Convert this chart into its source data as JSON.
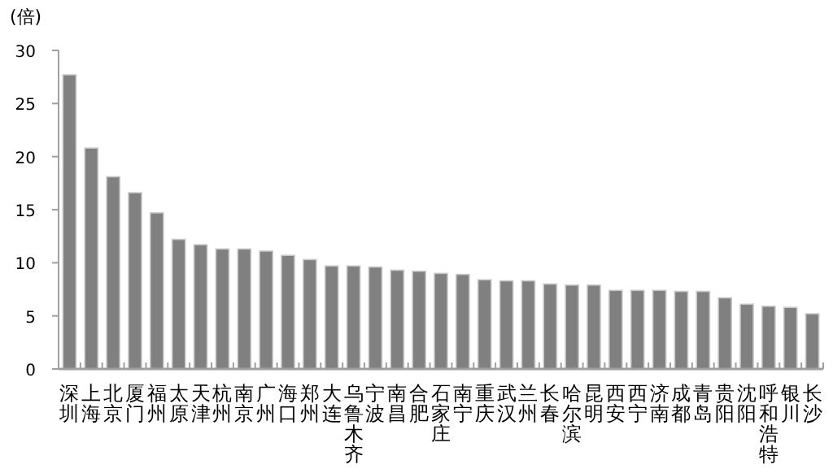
{
  "chart_data": {
    "type": "bar",
    "ylabel": "(倍)",
    "categories": [
      "深圳",
      "上海",
      "北京",
      "厦门",
      "福州",
      "太原",
      "天津",
      "杭州",
      "南京",
      "广州",
      "海口",
      "郑州",
      "大连",
      "乌鲁木齐",
      "宁波",
      "南昌",
      "合肥",
      "石家庄",
      "南宁",
      "重庆",
      "武汉",
      "兰州",
      "长春",
      "哈尔滨",
      "昆明",
      "西安",
      "西宁",
      "济南",
      "成都",
      "青岛",
      "贵阳",
      "沈阳",
      "呼和浩特",
      "银川",
      "长沙"
    ],
    "values": [
      27.7,
      20.8,
      18.1,
      16.6,
      14.7,
      12.2,
      11.7,
      11.3,
      11.3,
      11.1,
      10.7,
      10.3,
      9.7,
      9.7,
      9.6,
      9.3,
      9.2,
      9.0,
      8.9,
      8.4,
      8.3,
      8.3,
      8.0,
      7.9,
      7.9,
      7.4,
      7.4,
      7.4,
      7.3,
      7.3,
      6.7,
      6.1,
      5.9,
      5.8,
      5.2
    ],
    "color": "#808080",
    "ylim": [
      0,
      30
    ],
    "yticks": [
      0,
      5,
      10,
      15,
      20,
      25,
      30
    ],
    "grid": false
  }
}
